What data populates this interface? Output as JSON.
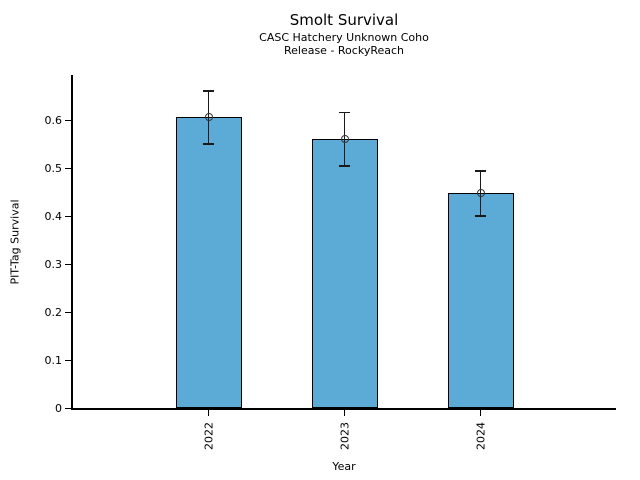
{
  "title": "Smolt Survival",
  "subtitle_line1": "CASC Hatchery Unknown Coho",
  "subtitle_line2": "Release - RockyReach",
  "chart_data": {
    "type": "bar",
    "categories": [
      "2022",
      "2023",
      "2024"
    ],
    "values": [
      0.607,
      0.562,
      0.449
    ],
    "error_low": [
      0.551,
      0.505,
      0.401
    ],
    "error_high": [
      0.661,
      0.617,
      0.495
    ],
    "title": "Smolt Survival",
    "subtitle": "CASC Hatchery Unknown Coho Release - RockyReach",
    "xlabel": "Year",
    "ylabel": "PIT-Tag Survival",
    "ylim": [
      0,
      0.695
    ],
    "yticks": [
      0,
      0.1,
      0.2,
      0.3,
      0.4,
      0.5,
      0.6
    ],
    "ytick_labels": [
      "0",
      "0.1",
      "0.2",
      "0.3",
      "0.4",
      "0.5",
      "0.6"
    ],
    "grid": false,
    "legend": false,
    "bar_color": "#5BABD6",
    "bar_edge_color": "#000000",
    "error_color": "#1a1a1a",
    "marker": "open-circle"
  }
}
